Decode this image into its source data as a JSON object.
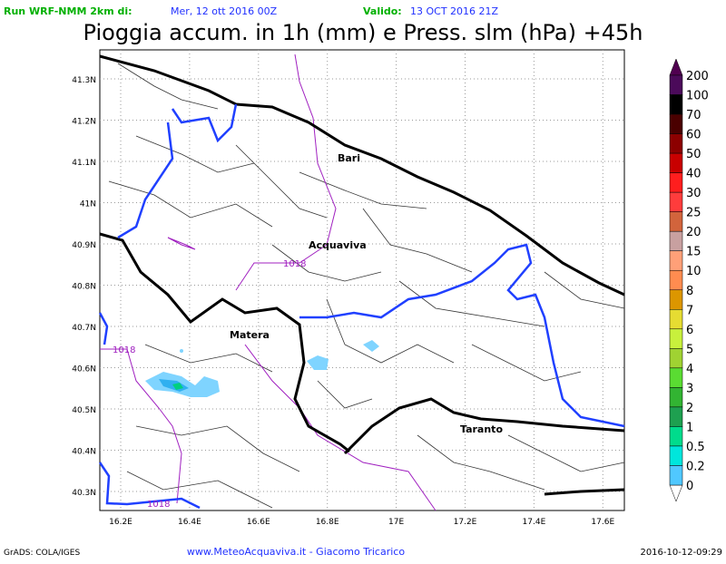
{
  "header": {
    "run_label": "Run WRF-NMM 2km di:",
    "run_date": "Mer, 12 ott 2016 00Z",
    "valid_label": "Valido:",
    "valid_date": "13 OCT 2016 21Z",
    "title": "Pioggia accum. in 1h (mm) e Press. slm (hPa) +45h"
  },
  "map": {
    "lat_ticks": [
      "41.3N",
      "41.2N",
      "41.1N",
      "41N",
      "40.9N",
      "40.8N",
      "40.7N",
      "40.6N",
      "40.5N",
      "40.4N",
      "40.3N"
    ],
    "lon_ticks": [
      "16.2E",
      "16.4E",
      "16.6E",
      "16.8E",
      "17E",
      "17.2E",
      "17.4E",
      "17.6E"
    ],
    "cities": [
      "Bari",
      "Acquaviva",
      "Matera",
      "Taranto"
    ],
    "isobar_labels": [
      "1018",
      "1018",
      "1018"
    ]
  },
  "colorbar": {
    "labels": [
      "200",
      "100",
      "70",
      "60",
      "50",
      "40",
      "30",
      "25",
      "20",
      "15",
      "10",
      "8",
      "7",
      "6",
      "5",
      "4",
      "3",
      "2",
      "1",
      "0.5",
      "0.2",
      "0"
    ],
    "colors": [
      "#4b0a5a",
      "#000000",
      "#4a0000",
      "#8c0000",
      "#c80000",
      "#ff1e1e",
      "#ff3c3c",
      "#d2643c",
      "#c8a0a0",
      "#ffa078",
      "#ff8c50",
      "#dc9600",
      "#e6dc32",
      "#c8f03c",
      "#a0d232",
      "#5adc32",
      "#32b432",
      "#1ea050",
      "#00dc8c",
      "#00e6dc",
      "#50c8ff"
    ]
  },
  "footer": {
    "software": "GrADS: COLA/IGES",
    "credit": "www.MeteoAcquaviva.it - Giacomo Tricarico",
    "timestamp": "2016-10-12-09:29"
  }
}
